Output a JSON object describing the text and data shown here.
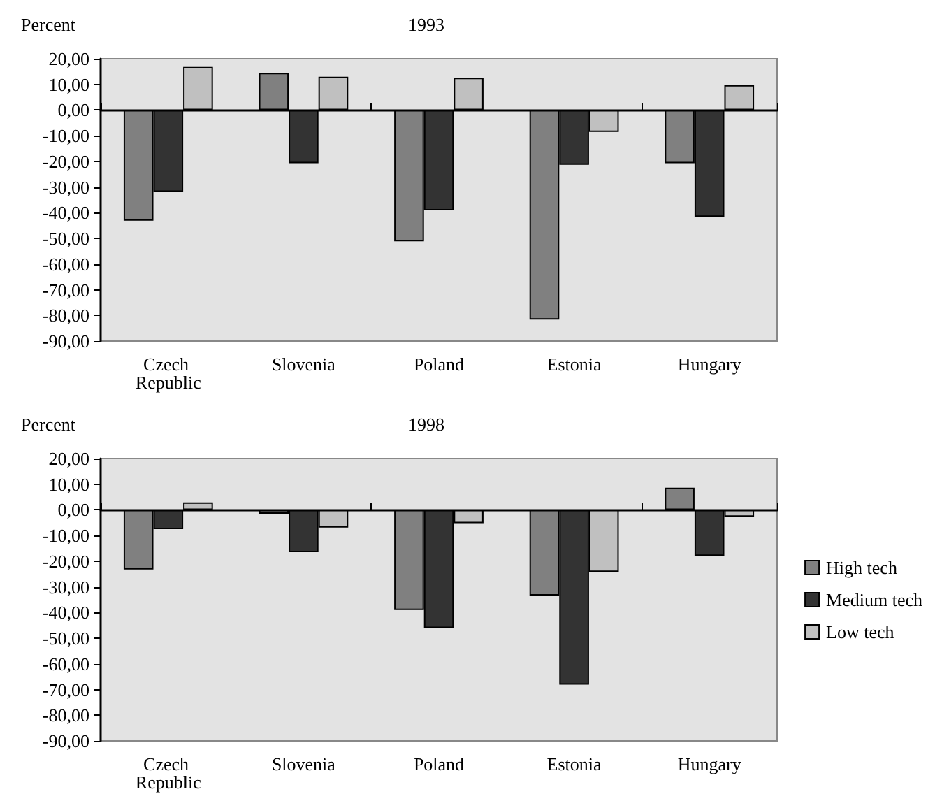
{
  "chart_data": [
    {
      "type": "bar",
      "title": "1993",
      "ylabel": "Percent",
      "categories": [
        "Czech Republic",
        "Slovenia",
        "Poland",
        "Estonia",
        "Hungary"
      ],
      "series": [
        {
          "color": "#808080",
          "values": [
            -43.1,
            14.5,
            -51.1,
            -81.6,
            -20.7
          ]
        },
        {
          "color": "#333333",
          "values": [
            -31.9,
            -20.7,
            -39.1,
            -21.3,
            -41.6
          ]
        },
        {
          "color": "#c0c0c0",
          "values": [
            16.8,
            13.0,
            12.6,
            -8.5,
            9.7
          ]
        }
      ],
      "ylim": [
        -90,
        20
      ],
      "yticks": [
        {
          "value": 20,
          "label": "20,00"
        },
        {
          "value": 10,
          "label": "10,00"
        },
        {
          "value": 0,
          "label": "0,00"
        },
        {
          "value": -10,
          "label": "-10,00"
        },
        {
          "value": -20,
          "label": "-20,00"
        },
        {
          "value": -30,
          "label": "-30,00"
        },
        {
          "value": -40,
          "label": "-40,00"
        },
        {
          "value": -50,
          "label": "-50,00"
        },
        {
          "value": -60,
          "label": "-60,00"
        },
        {
          "value": -70,
          "label": "-70,00"
        },
        {
          "value": -80,
          "label": "-80,00"
        },
        {
          "value": -90,
          "label": "-90,00"
        }
      ],
      "legend": false
    },
    {
      "type": "bar",
      "title": "1998",
      "ylabel": "Percent",
      "categories": [
        "Czech Republic",
        "Slovenia",
        "Poland",
        "Estonia",
        "Hungary"
      ],
      "series": [
        {
          "name": "High tech",
          "color": "#808080",
          "values": [
            -23.2,
            -1.5,
            -39.0,
            -33.4,
            8.6
          ]
        },
        {
          "name": "Medium tech",
          "color": "#333333",
          "values": [
            -7.5,
            -16.5,
            -46.0,
            -68.1,
            -17.9
          ]
        },
        {
          "name": "Low tech",
          "color": "#c0c0c0",
          "values": [
            2.9,
            -6.9,
            -5.2,
            -24.2,
            -2.7
          ]
        }
      ],
      "ylim": [
        -90,
        20
      ],
      "yticks": [
        {
          "value": 20,
          "label": "20,00"
        },
        {
          "value": 10,
          "label": "10,00"
        },
        {
          "value": 0,
          "label": "0,00"
        },
        {
          "value": -10,
          "label": "-10,00"
        },
        {
          "value": -20,
          "label": "-20,00"
        },
        {
          "value": -30,
          "label": "-30,00"
        },
        {
          "value": -40,
          "label": "-40,00"
        },
        {
          "value": -50,
          "label": "-50,00"
        },
        {
          "value": -60,
          "label": "-60,00"
        },
        {
          "value": -70,
          "label": "-70,00"
        },
        {
          "value": -80,
          "label": "-80,00"
        },
        {
          "value": -90,
          "label": "-90,00"
        }
      ],
      "legend": "right"
    }
  ]
}
